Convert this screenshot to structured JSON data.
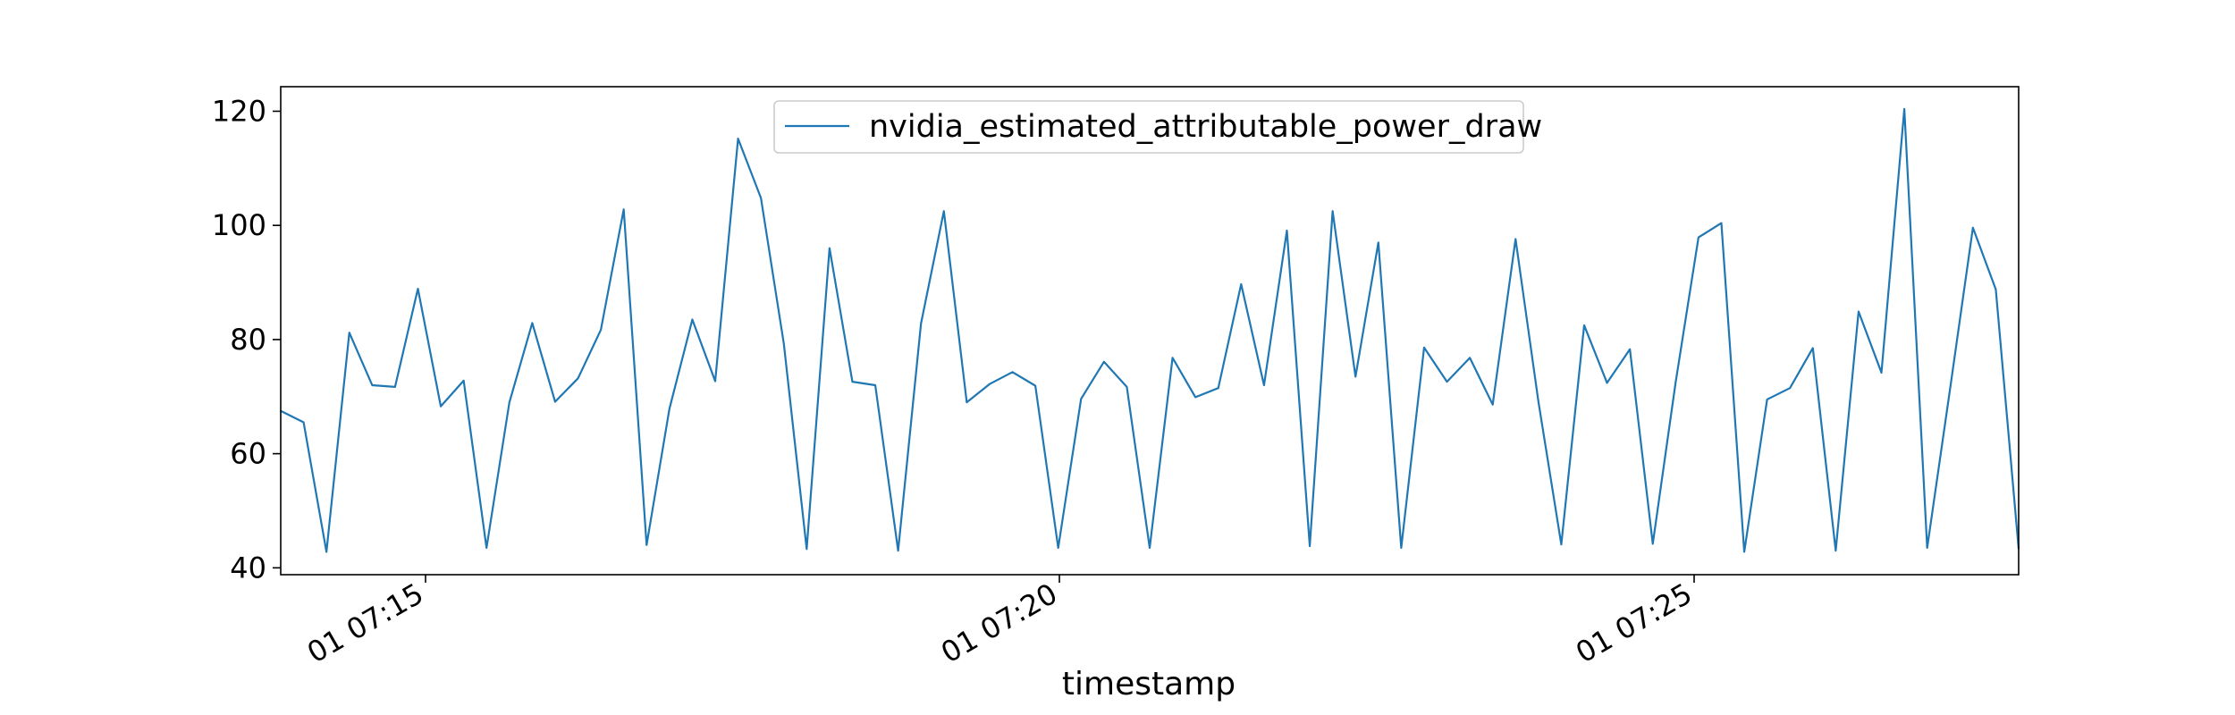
{
  "chart_data": {
    "type": "line",
    "xlabel": "timestamp",
    "ylabel": "",
    "x_tick_labels": [
      "01 07:15",
      "01 07:20",
      "01 07:25"
    ],
    "y_ticks": [
      40,
      60,
      80,
      100,
      120
    ],
    "ylim": [
      38.8,
      124.3
    ],
    "grid": false,
    "legend": {
      "placement": "upper-center",
      "entries": [
        "nvidia_estimated_attributable_power_draw"
      ]
    },
    "series": [
      {
        "name": "nvidia_estimated_attributable_power_draw",
        "color": "#1f77b4",
        "values": [
          67.5,
          65.5,
          42.8,
          81.2,
          72.0,
          71.7,
          88.9,
          68.3,
          72.8,
          43.5,
          69.0,
          82.9,
          69.1,
          73.2,
          81.7,
          102.8,
          44.0,
          67.9,
          83.5,
          72.7,
          115.2,
          104.8,
          79.3,
          43.3,
          96.0,
          72.6,
          72.0,
          43.0,
          82.8,
          102.5,
          69.0,
          72.2,
          74.3,
          71.9,
          43.5,
          69.6,
          76.1,
          71.7,
          43.5,
          76.8,
          69.9,
          71.5,
          89.7,
          72.0,
          99.1,
          43.8,
          102.5,
          73.5,
          97.0,
          43.5,
          78.6,
          72.6,
          76.8,
          68.6,
          97.6,
          69.1,
          44.1,
          82.5,
          72.4,
          78.3,
          44.2,
          72.5,
          97.9,
          100.4,
          42.8,
          69.5,
          71.5,
          78.5,
          43.0,
          84.9,
          74.2,
          120.4,
          43.5,
          71.3,
          99.6,
          88.8,
          43.3
        ]
      }
    ]
  }
}
